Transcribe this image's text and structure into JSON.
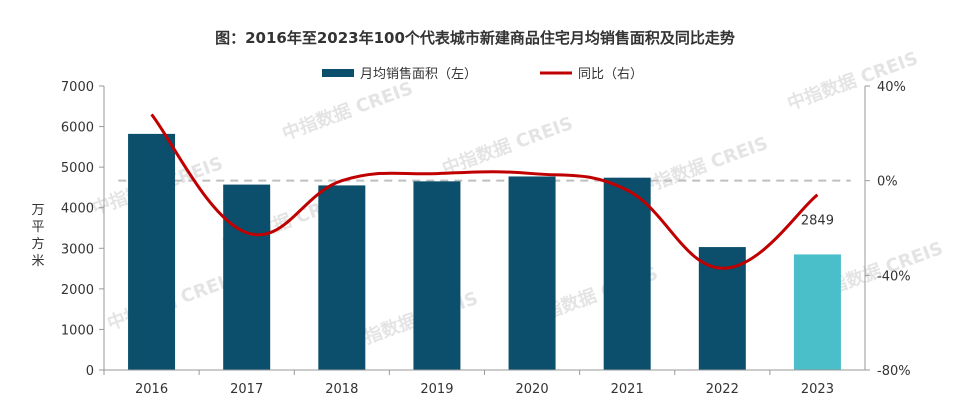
{
  "chart_data": {
    "type": "bar",
    "title": "图：2016年至2023年100个代表城市新建商品住宅月均销售面积及同比走势",
    "categories": [
      "2016",
      "2017",
      "2018",
      "2019",
      "2020",
      "2021",
      "2022",
      "2023"
    ],
    "series": [
      {
        "name": "月均销售面积（左）",
        "type": "bar",
        "axis": "left",
        "values": [
          5820,
          4570,
          4550,
          4650,
          4770,
          4740,
          3030,
          2849
        ],
        "colors": [
          "#0b4f6c",
          "#0b4f6c",
          "#0b4f6c",
          "#0b4f6c",
          "#0b4f6c",
          "#0b4f6c",
          "#0b4f6c",
          "#4bbfc9"
        ]
      },
      {
        "name": "同比（右）",
        "type": "line",
        "axis": "right",
        "unit": "%",
        "values": [
          28,
          -22,
          0,
          3,
          3,
          -4,
          -37,
          -6
        ],
        "color": "#c00000"
      }
    ],
    "data_labels": [
      {
        "category": "2023",
        "text": "2849"
      }
    ],
    "ylabel": "万平方米",
    "ylim": [
      0,
      7000
    ],
    "yticks": [
      0,
      1000,
      2000,
      3000,
      4000,
      5000,
      6000,
      7000
    ],
    "y2lim": [
      -80,
      40
    ],
    "y2ticks": [
      "40%",
      "0%",
      "-40%",
      "-80%"
    ],
    "reference_line": {
      "axis": "right",
      "value": 0,
      "style": "dashed"
    },
    "legend_position": "top-center",
    "watermark_text": "中指数据 CREIS"
  }
}
